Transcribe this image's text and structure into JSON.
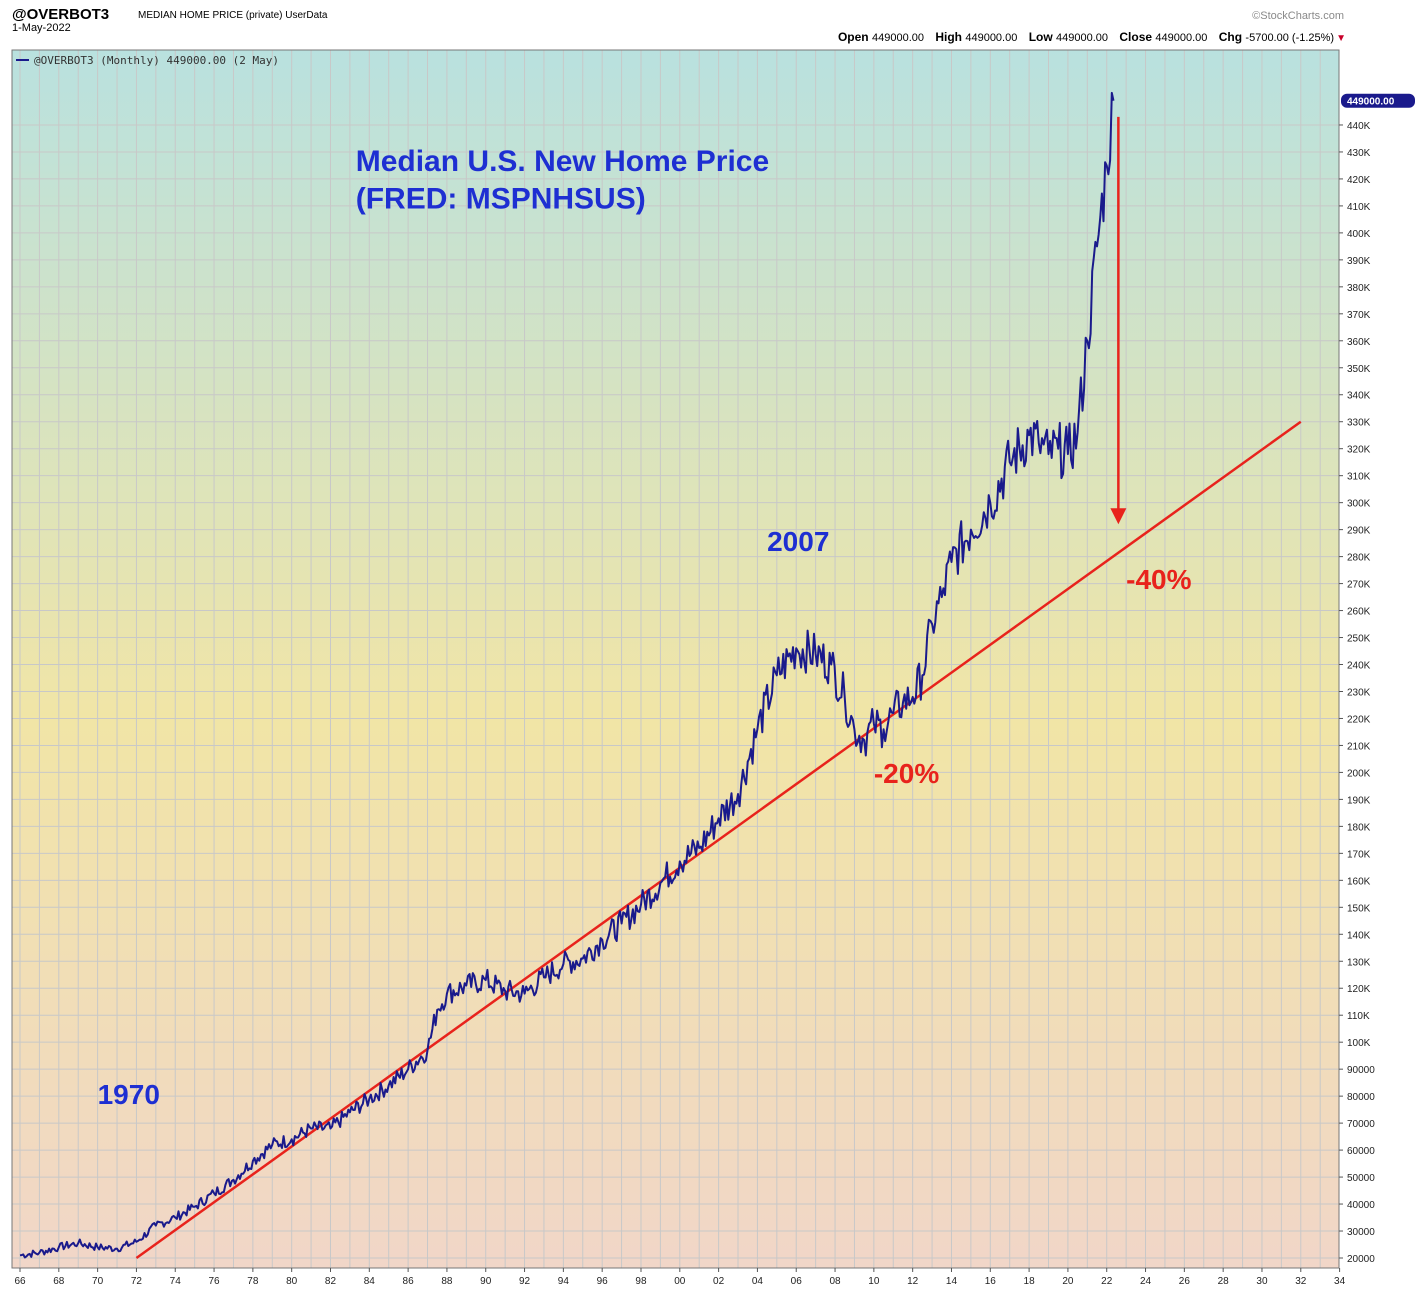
{
  "header": {
    "symbol": "@OVERBOT3",
    "description": "MEDIAN HOME PRICE (private) UserData",
    "date": "1-May-2022",
    "watermark": "©StockCharts.com",
    "open_label": "Open",
    "open_value": "449000.00",
    "high_label": "High",
    "high_value": "449000.00",
    "low_label": "Low",
    "low_value": "449000.00",
    "close_label": "Close",
    "close_value": "449000.00",
    "chg_label": "Chg",
    "chg_value": "-5700.00 (-1.25%)",
    "chg_arrow": "▼"
  },
  "colors": {
    "series": "#1a1a8c",
    "trendline": "#e8231c",
    "annotation_blue": "#1e2fd2",
    "annotation_red": "#e8231c",
    "grid": "#c8c8c8",
    "bg_top": "#b9e1df",
    "bg_mid": "#f1e5a6",
    "bg_bottom": "#f1d6c8"
  },
  "chart_data": {
    "type": "line",
    "title": "Median U.S. New Home Price",
    "subtitle": "(FRED: MSPNHSUS)",
    "legend": "@OVERBOT3 (Monthly) 449000.00 (2 May)",
    "last_value_label": "449000.00",
    "ylim": [
      20000,
      450000
    ],
    "xlim": [
      1966,
      2035
    ],
    "y_ticks": [
      20000,
      30000,
      40000,
      50000,
      60000,
      70000,
      80000,
      90000,
      100000,
      110000,
      120000,
      130000,
      140000,
      150000,
      160000,
      170000,
      180000,
      190000,
      200000,
      210000,
      220000,
      230000,
      240000,
      250000,
      260000,
      270000,
      280000,
      290000,
      300000,
      310000,
      320000,
      330000,
      340000,
      350000,
      360000,
      370000,
      380000,
      390000,
      400000,
      410000,
      420000,
      430000,
      440000
    ],
    "y_tick_labels": [
      "20000",
      "30000",
      "40000",
      "50000",
      "60000",
      "70000",
      "80000",
      "90000",
      "100K",
      "110K",
      "120K",
      "130K",
      "140K",
      "150K",
      "160K",
      "170K",
      "180K",
      "190K",
      "200K",
      "210K",
      "220K",
      "230K",
      "240K",
      "250K",
      "260K",
      "270K",
      "280K",
      "290K",
      "300K",
      "310K",
      "320K",
      "330K",
      "340K",
      "350K",
      "360K",
      "370K",
      "380K",
      "390K",
      "400K",
      "410K",
      "420K",
      "430K",
      "440K"
    ],
    "x_ticks": [
      1966,
      1968,
      1970,
      1972,
      1974,
      1976,
      1978,
      1980,
      1982,
      1984,
      1986,
      1988,
      1990,
      1992,
      1994,
      1996,
      1998,
      2000,
      2002,
      2004,
      2006,
      2008,
      2010,
      2012,
      2014,
      2016,
      2018,
      2020,
      2022,
      2024,
      2026,
      2028,
      2030,
      2032,
      2034
    ],
    "x_tick_labels": [
      "66",
      "68",
      "70",
      "72",
      "74",
      "76",
      "78",
      "80",
      "82",
      "84",
      "86",
      "88",
      "90",
      "92",
      "94",
      "96",
      "98",
      "00",
      "02",
      "04",
      "06",
      "08",
      "10",
      "12",
      "14",
      "16",
      "18",
      "20",
      "22",
      "24",
      "26",
      "28",
      "30",
      "32",
      "34"
    ],
    "series": [
      {
        "name": "Median New Home Price",
        "points": [
          [
            1966.0,
            21000
          ],
          [
            1967.0,
            22000
          ],
          [
            1968.0,
            24000
          ],
          [
            1969.0,
            25500
          ],
          [
            1970.0,
            24000
          ],
          [
            1971.0,
            23500
          ],
          [
            1972.0,
            26000
          ],
          [
            1973.0,
            32000
          ],
          [
            1974.0,
            35000
          ],
          [
            1975.0,
            39000
          ],
          [
            1976.0,
            44000
          ],
          [
            1977.0,
            49000
          ],
          [
            1978.0,
            56000
          ],
          [
            1979.0,
            62000
          ],
          [
            1980.0,
            64000
          ],
          [
            1981.0,
            68000
          ],
          [
            1982.0,
            68000
          ],
          [
            1983.0,
            74000
          ],
          [
            1984.0,
            79000
          ],
          [
            1985.0,
            84000
          ],
          [
            1986.0,
            90000
          ],
          [
            1987.0,
            97000
          ],
          [
            1987.5,
            112000
          ],
          [
            1988.0,
            118000
          ],
          [
            1989.0,
            121000
          ],
          [
            1990.0,
            123000
          ],
          [
            1991.0,
            119000
          ],
          [
            1992.0,
            118000
          ],
          [
            1993.0,
            124000
          ],
          [
            1994.0,
            129000
          ],
          [
            1995.0,
            131000
          ],
          [
            1996.0,
            138000
          ],
          [
            1997.0,
            144000
          ],
          [
            1998.0,
            151000
          ],
          [
            1999.0,
            159000
          ],
          [
            2000.0,
            167000
          ],
          [
            2001.0,
            172000
          ],
          [
            2002.0,
            183000
          ],
          [
            2003.0,
            192000
          ],
          [
            2004.0,
            216000
          ],
          [
            2005.0,
            236000
          ],
          [
            2006.0,
            246000
          ],
          [
            2007.0,
            244000
          ],
          [
            2007.8,
            240000
          ],
          [
            2008.5,
            228000
          ],
          [
            2009.0,
            216000
          ],
          [
            2009.5,
            212000
          ],
          [
            2010.0,
            218000
          ],
          [
            2010.5,
            216000
          ],
          [
            2011.0,
            222000
          ],
          [
            2011.5,
            226000
          ],
          [
            2012.0,
            228000
          ],
          [
            2012.5,
            236000
          ],
          [
            2013.0,
            255000
          ],
          [
            2013.5,
            265000
          ],
          [
            2014.0,
            278000
          ],
          [
            2015.0,
            290000
          ],
          [
            2016.0,
            300000
          ],
          [
            2017.0,
            315000
          ],
          [
            2018.0,
            325000
          ],
          [
            2018.5,
            322000
          ],
          [
            2019.0,
            318000
          ],
          [
            2019.5,
            320000
          ],
          [
            2020.0,
            318000
          ],
          [
            2020.5,
            326000
          ],
          [
            2021.0,
            360000
          ],
          [
            2021.5,
            395000
          ],
          [
            2022.0,
            425000
          ],
          [
            2022.35,
            449000
          ]
        ]
      }
    ],
    "trendline": {
      "from": [
        1972.0,
        20000
      ],
      "to": [
        2032.0,
        330000
      ]
    },
    "annotations": [
      {
        "text": "Median U.S. New Home Price",
        "at": [
          1983.3,
          423000
        ],
        "size": 30,
        "color": "blue"
      },
      {
        "text": "(FRED: MSPNHSUS)",
        "at": [
          1983.3,
          409000
        ],
        "size": 30,
        "color": "blue"
      },
      {
        "text": "2007",
        "at": [
          2004.5,
          282000
        ],
        "size": 28,
        "color": "blue"
      },
      {
        "text": "1970",
        "at": [
          1970.0,
          77000
        ],
        "size": 28,
        "color": "blue"
      },
      {
        "text": "-40%",
        "at": [
          2023.0,
          268000
        ],
        "size": 28,
        "color": "red"
      },
      {
        "text": "-20%",
        "at": [
          2010.0,
          196000
        ],
        "size": 28,
        "color": "red"
      }
    ],
    "arrow": {
      "from": [
        2022.6,
        443000
      ],
      "to": [
        2022.6,
        292000
      ]
    }
  }
}
